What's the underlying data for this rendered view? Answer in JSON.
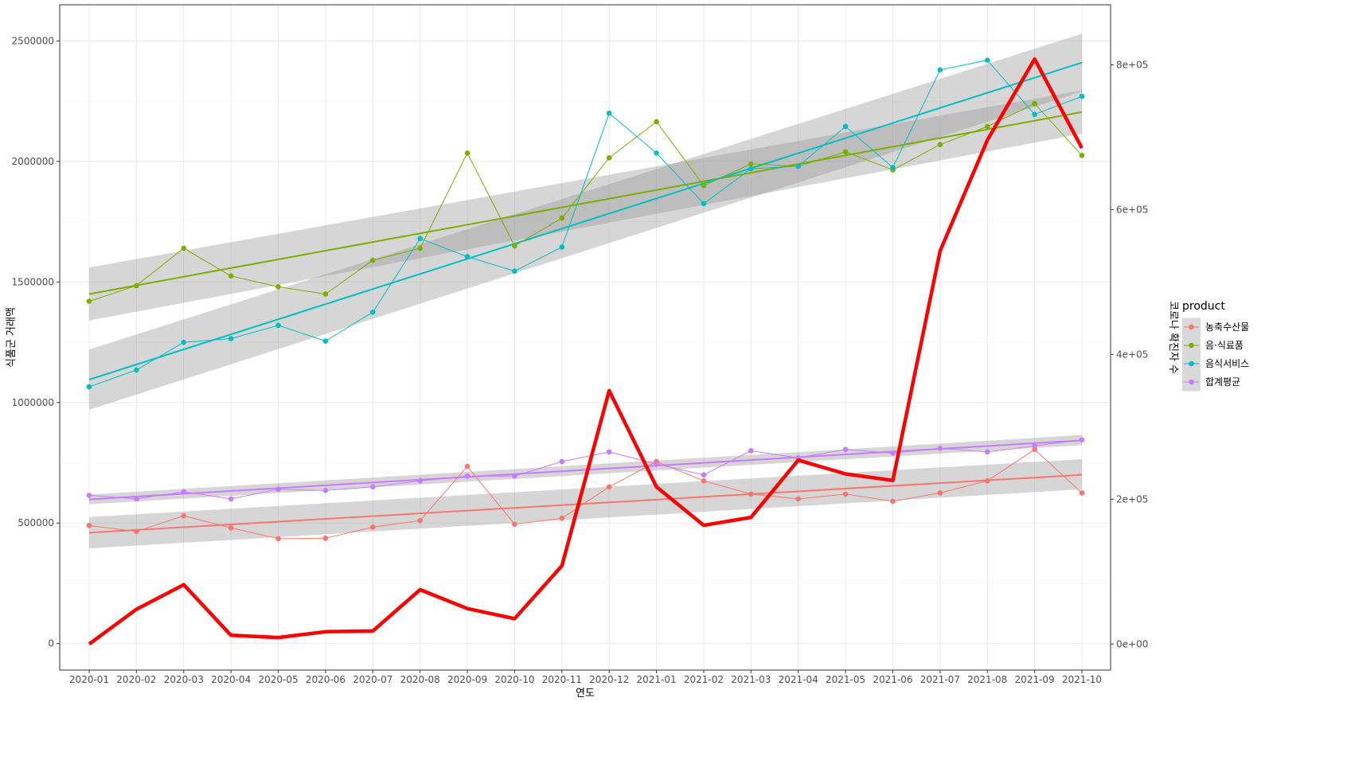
{
  "chart_data": {
    "type": "line",
    "categories": [
      "2020-01",
      "2020-02",
      "2020-03",
      "2020-04",
      "2020-05",
      "2020-06",
      "2020-07",
      "2020-08",
      "2020-09",
      "2020-10",
      "2020-11",
      "2020-12",
      "2021-01",
      "2021-02",
      "2021-03",
      "2021-04",
      "2021-05",
      "2021-06",
      "2021-07",
      "2021-08",
      "2021-09",
      "2021-10"
    ],
    "xlabel": "연도",
    "ylabel": "식품군 거래액",
    "y2label": "코로나 확진자 수",
    "ylim": [
      -110000,
      2650000
    ],
    "yticks": [
      0,
      500000,
      1000000,
      1500000,
      2000000,
      2500000
    ],
    "ytick_labels": [
      "0",
      "500000",
      "1000000",
      "1500000",
      "2000000",
      "2500000"
    ],
    "y2lim": [
      -36000,
      883000
    ],
    "y2ticks": [
      0,
      200000,
      400000,
      600000,
      800000
    ],
    "y2tick_labels": [
      "0e+00",
      "2e+05",
      "4e+05",
      "6e+05",
      "8e+05"
    ],
    "grid": true,
    "legend": {
      "title": "product",
      "position": "right"
    },
    "series": [
      {
        "name": "농축수산물",
        "color": "#F8766D",
        "values": [
          490000,
          465000,
          530000,
          480000,
          435000,
          437000,
          483000,
          510000,
          735000,
          495000,
          520000,
          650000,
          755000,
          675000,
          620000,
          600000,
          620000,
          590000,
          625000,
          675000,
          805000,
          625000
        ],
        "trend": {
          "start": 460000,
          "end": 700000,
          "band": [
            [
              395000,
              525000
            ],
            [
              640000,
              765000
            ]
          ]
        }
      },
      {
        "name": "음·식료품",
        "color": "#7CAE00",
        "values": [
          1420000,
          1485000,
          1640000,
          1525000,
          1480000,
          1450000,
          1590000,
          1640000,
          2035000,
          1650000,
          1765000,
          2015000,
          2165000,
          1900000,
          1990000,
          1980000,
          2040000,
          1965000,
          2070000,
          2145000,
          2240000,
          2025000
        ],
        "trend": {
          "start": 1450000,
          "end": 2205000,
          "band": [
            [
              1340000,
              1560000
            ],
            [
              2115000,
              2295000
            ]
          ]
        }
      },
      {
        "name": "음식서비스",
        "color": "#00BFC4",
        "values": [
          1065000,
          1135000,
          1250000,
          1265000,
          1320000,
          1255000,
          1375000,
          1680000,
          1605000,
          1545000,
          1645000,
          2200000,
          2035000,
          1825000,
          1970000,
          1980000,
          2145000,
          1975000,
          2380000,
          2420000,
          2195000,
          2270000
        ],
        "trend": {
          "start": 1095000,
          "end": 2410000,
          "band": [
            [
              970000,
              1220000
            ],
            [
              2290000,
              2530000
            ]
          ]
        }
      },
      {
        "name": "합계평균",
        "color": "#C77CFF",
        "values": [
          615000,
          600000,
          630000,
          600000,
          640000,
          635000,
          650000,
          675000,
          695000,
          695000,
          755000,
          795000,
          745000,
          700000,
          800000,
          770000,
          805000,
          790000,
          810000,
          795000,
          820000,
          845000
        ],
        "trend": {
          "start": 598000,
          "end": 843000,
          "band": [
            [
              578000,
              618000
            ],
            [
              823000,
              865000
            ]
          ]
        }
      }
    ],
    "covid_series": {
      "axis": "secondary",
      "color": "#FF0000",
      "values": [
        0,
        48000,
        82000,
        12000,
        9000,
        17000,
        18000,
        75000,
        49000,
        35000,
        108000,
        350000,
        217000,
        164000,
        175000,
        254000,
        235000,
        226000,
        543000,
        696000,
        808000,
        685000
      ]
    }
  }
}
